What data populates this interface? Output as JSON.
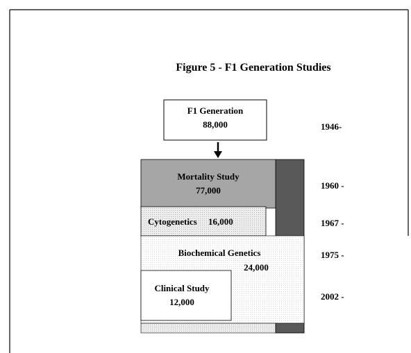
{
  "title": "Figure 5 - F1 Generation Studies",
  "boxes": [
    {
      "label": "F1 Generation",
      "count": "88,000"
    },
    {
      "label": "Mortality Study",
      "count": "77,000"
    },
    {
      "label": "Cytogenetics",
      "count": "16,000"
    },
    {
      "label": "Biochemical Genetics",
      "count": "24,000"
    },
    {
      "label": "Clinical Study",
      "count": "12,000"
    }
  ],
  "timeline": [
    "1946-",
    "1960 -",
    "1967 -",
    "1975 -",
    "2002 -"
  ]
}
